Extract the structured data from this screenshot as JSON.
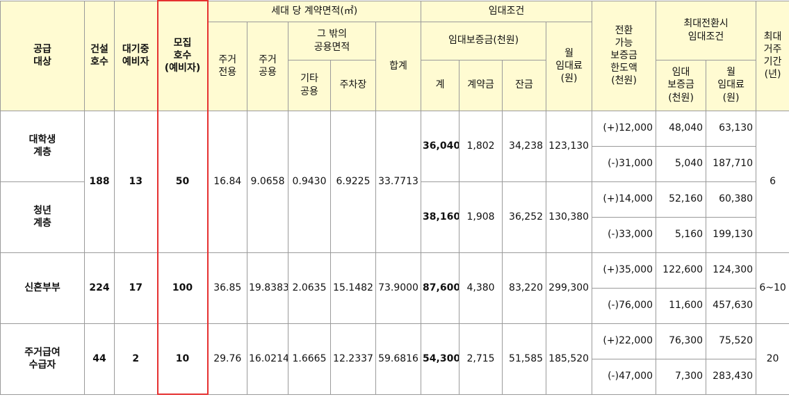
{
  "headers": [
    "공급\n대상",
    "건설\n호수",
    "대기중\n예비자",
    "모집\n호수\n(예비자)",
    "세대 당 계약면적(㎡)",
    "임대조건",
    "전환\n가능\n보증금\n한도액\n(천원)",
    "최대전환시\n임대조건",
    "최대\n거주\n기간\n(년)",
    "주거\n전용",
    "주거\n공용",
    "그 밖의\n공용면적",
    "합계",
    "임대보증금(천원)",
    "월\n임대료\n(원)",
    "기타\n공용",
    "주차장",
    "계",
    "계약금",
    "잔금",
    "임대\n보증금\n(천원)",
    "월\n임대료\n(원)"
  ],
  "groups": [
    {
      "built": "188",
      "waiting": "13",
      "recruit": "50",
      "areas": [
        "16.84",
        "9.0658",
        "0.9430",
        "6.9225",
        "33.7713"
      ],
      "period": "6",
      "subgroups": [
        {
          "target": "대학생\n계층",
          "deposit": "36,040",
          "contract": "1,802",
          "balance": "34,238",
          "rent": "123,130",
          "conversions": [
            {
              "limit": "(+)12,000",
              "deposit": "48,040",
              "rent": "63,130"
            },
            {
              "limit": "(-)31,000",
              "deposit": "5,040",
              "rent": "187,710"
            }
          ]
        },
        {
          "target": "청년\n계층",
          "deposit": "38,160",
          "contract": "1,908",
          "balance": "36,252",
          "rent": "130,380",
          "conversions": [
            {
              "limit": "(+)14,000",
              "deposit": "52,160",
              "rent": "60,380"
            },
            {
              "limit": "(-)33,000",
              "deposit": "5,160",
              "rent": "199,130"
            }
          ]
        }
      ]
    },
    {
      "built": "224",
      "waiting": "17",
      "recruit": "100",
      "areas": [
        "36.85",
        "19.8383",
        "2.0635",
        "15.1482",
        "73.9000"
      ],
      "period": "6~10",
      "subgroups": [
        {
          "target": "신혼부부",
          "deposit": "87,600",
          "contract": "4,380",
          "balance": "83,220",
          "rent": "299,300",
          "conversions": [
            {
              "limit": "(+)35,000",
              "deposit": "122,600",
              "rent": "124,300"
            },
            {
              "limit": "(-)76,000",
              "deposit": "11,600",
              "rent": "457,630"
            }
          ]
        }
      ]
    },
    {
      "built": "44",
      "waiting": "2",
      "recruit": "10",
      "areas": [
        "29.76",
        "16.0214",
        "1.6665",
        "12.2337",
        "59.6816"
      ],
      "period": "20",
      "subgroups": [
        {
          "target": "주거급여\n수급자",
          "deposit": "54,300",
          "contract": "2,715",
          "balance": "51,585",
          "rent": "185,520",
          "conversions": [
            {
              "limit": "(+)22,000",
              "deposit": "76,300",
              "rent": "75,520"
            },
            {
              "limit": "(-)47,000",
              "deposit": "7,300",
              "rent": "283,430"
            }
          ]
        }
      ]
    }
  ]
}
